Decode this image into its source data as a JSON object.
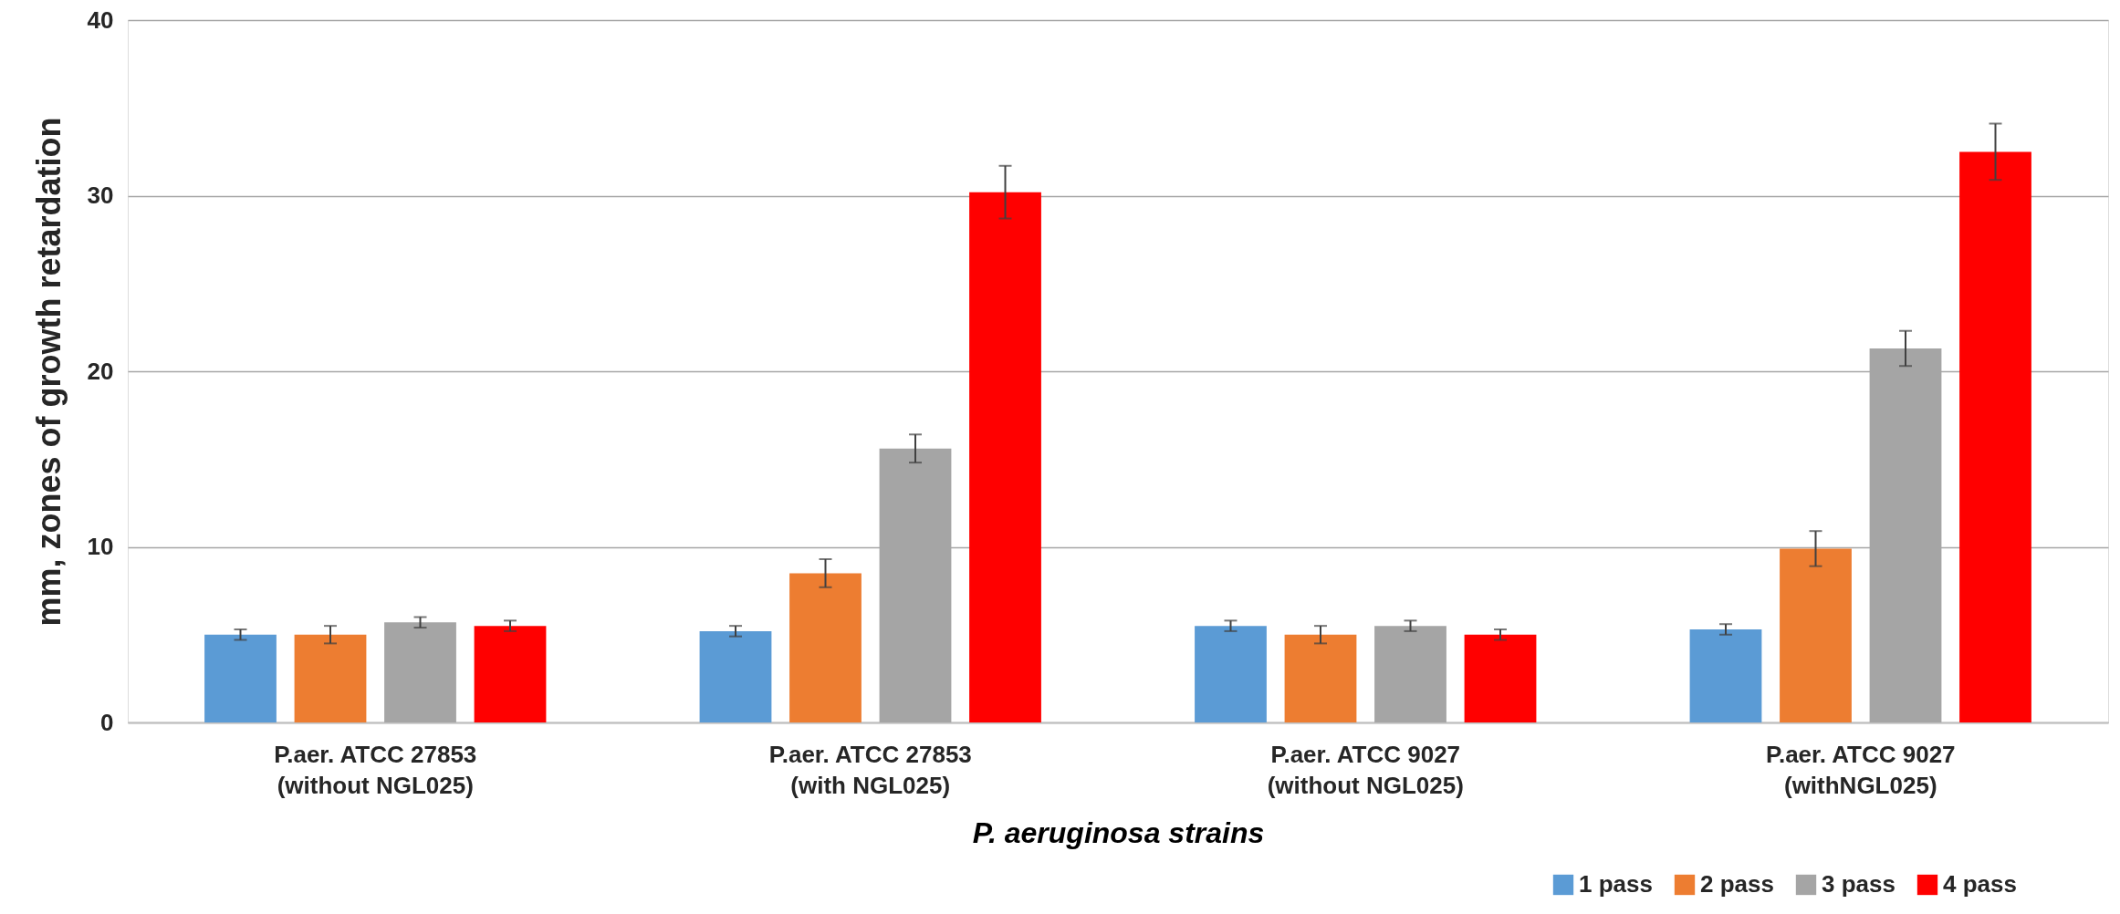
{
  "chart_data": {
    "type": "bar",
    "xlabel": "P. aeruginosa strains",
    "ylabel": "mm, zones of growth retardation",
    "categories": [
      "P.aer. ATCC 27853\n(without NGL025)",
      "P.aer. ATCC 27853\n(with NGL025)",
      "P.aer. ATCC 9027\n(without NGL025)",
      "P.aer. ATCC 9027\n(withNGL025)"
    ],
    "series": [
      {
        "name": "1 pass",
        "color": "#5b9bd5",
        "values": [
          5.0,
          5.2,
          5.5,
          5.3
        ],
        "errors": [
          0.3,
          0.3,
          0.3,
          0.3
        ]
      },
      {
        "name": "2 pass",
        "color": "#ed7d31",
        "values": [
          5.0,
          8.5,
          5.0,
          9.9
        ],
        "errors": [
          0.5,
          0.8,
          0.5,
          1.0
        ]
      },
      {
        "name": "3 pass",
        "color": "#a5a5a5",
        "values": [
          5.7,
          15.6,
          5.5,
          21.3
        ],
        "errors": [
          0.3,
          0.8,
          0.3,
          1.0
        ]
      },
      {
        "name": "4 pass",
        "color": "#ff0000",
        "values": [
          5.5,
          30.2,
          5.0,
          32.5
        ],
        "errors": [
          0.3,
          1.5,
          0.3,
          1.6
        ]
      }
    ],
    "ylim": [
      0,
      40
    ],
    "yticks": [
      0,
      10,
      20,
      30,
      40
    ],
    "grid": "y",
    "legend": "bottom right"
  }
}
